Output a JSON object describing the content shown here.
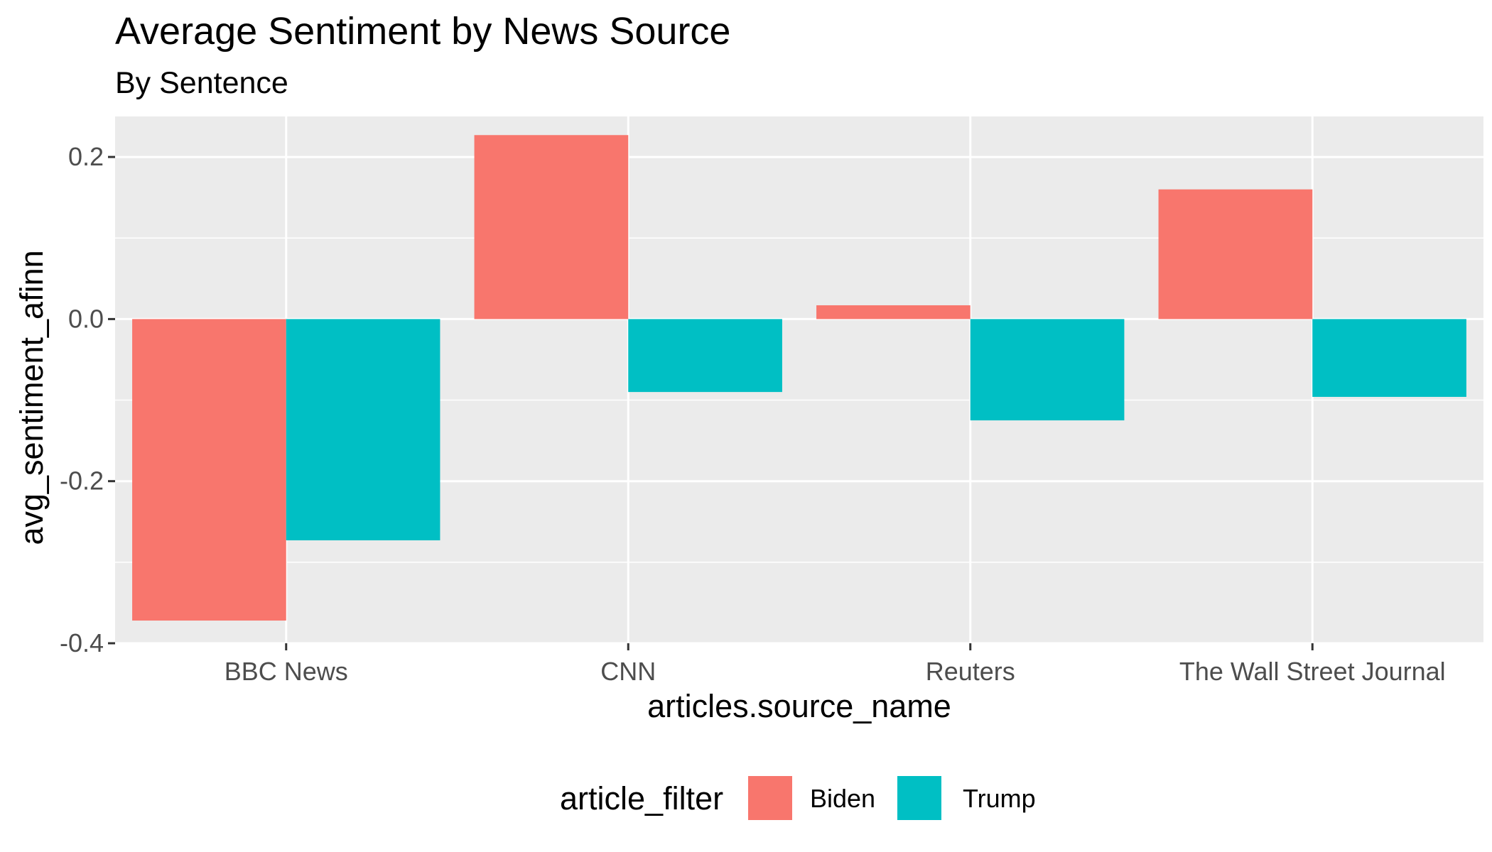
{
  "chart_data": {
    "type": "bar",
    "title": "Average Sentiment by News Source",
    "subtitle": "By Sentence",
    "xlabel": "articles.source_name",
    "ylabel": "avg_sentiment_afinn",
    "categories": [
      "BBC News",
      "CNN",
      "Reuters",
      "The Wall Street Journal"
    ],
    "series": [
      {
        "name": "Biden",
        "color": "#F8766D",
        "values": [
          -0.372,
          0.227,
          0.017,
          0.16
        ]
      },
      {
        "name": "Trump",
        "color": "#00BFC4",
        "values": [
          -0.273,
          -0.09,
          -0.125,
          -0.096
        ]
      }
    ],
    "ylim": [
      -0.4,
      0.25
    ],
    "yticks": [
      -0.4,
      -0.2,
      0.0,
      0.2
    ],
    "ytick_labels": [
      "-0.4",
      "-0.2",
      "0.0",
      "0.2"
    ],
    "legend_title": "article_filter",
    "legend_position": "bottom",
    "panel_background": "#EBEBEB",
    "grid": true
  }
}
